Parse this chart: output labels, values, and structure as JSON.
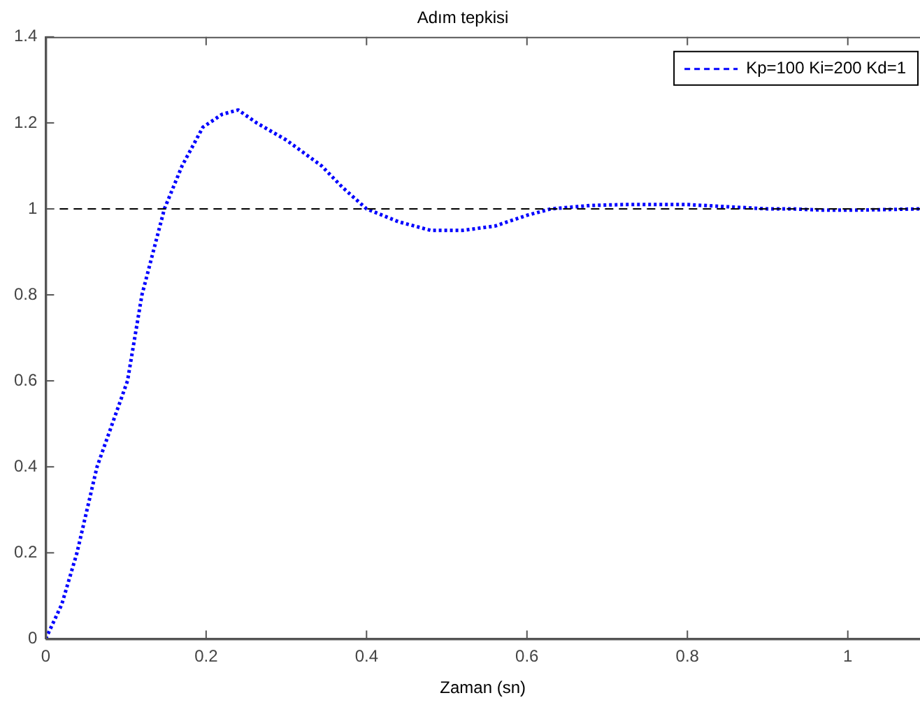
{
  "chart_data": {
    "type": "line",
    "title": "Adım tepkisi",
    "xlabel": "Zaman (sn)",
    "x": [
      0,
      0.02,
      0.039,
      0.064,
      0.083,
      0.102,
      0.12,
      0.148,
      0.17,
      0.196,
      0.22,
      0.24,
      0.263,
      0.3,
      0.344,
      0.37,
      0.4,
      0.44,
      0.48,
      0.52,
      0.56,
      0.6,
      0.63,
      0.68,
      0.72,
      0.76,
      0.8,
      0.85,
      0.9,
      0.93,
      0.97,
      1.0,
      1.04,
      1.09
    ],
    "series": [
      {
        "name": "Kp=100 Ki=200 Kd=1",
        "color": "#0000ff",
        "line_style": "dotted",
        "values": [
          0,
          0.08,
          0.2,
          0.4,
          0.5,
          0.6,
          0.8,
          1.0,
          1.1,
          1.19,
          1.22,
          1.23,
          1.2,
          1.16,
          1.1,
          1.05,
          1.0,
          0.97,
          0.95,
          0.95,
          0.96,
          0.985,
          1.0,
          1.008,
          1.01,
          1.01,
          1.01,
          1.005,
          1.0,
          1.0,
          0.997,
          0.997,
          0.998,
          1.0
        ]
      }
    ],
    "ref_lines": [
      {
        "axis": "y",
        "value": 1,
        "color": "#000000",
        "line_style": "dashed"
      }
    ],
    "xlim": [
      0,
      1.09
    ],
    "xticks": [
      0,
      0.2,
      0.4,
      0.6,
      0.8,
      1
    ],
    "ylim": [
      0,
      1.4
    ],
    "yticks": [
      0,
      0.2,
      0.4,
      0.6,
      0.8,
      1,
      1.2,
      1.4
    ],
    "grid": false,
    "legend": "top right",
    "marker": "none"
  }
}
